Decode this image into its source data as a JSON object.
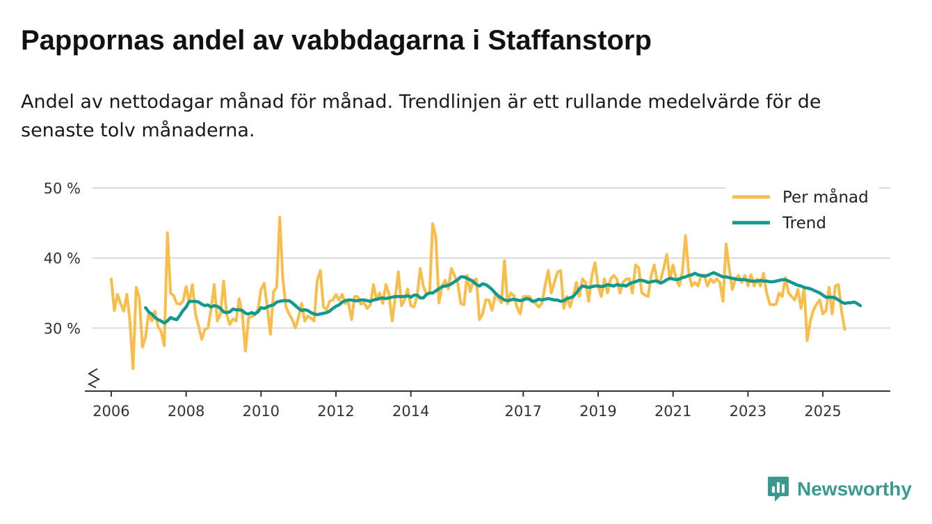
{
  "colors": {
    "monthly": "#f9bd4c",
    "trend": "#11998e",
    "grid": "#d9d9d9",
    "axis": "#333333",
    "brand": "#3a9a8e"
  },
  "chart_data": {
    "type": "line",
    "title": "Pappornas andel av vabbdagarna i Staffanstorp",
    "subtitle": "Andel av nettodagar månad för månad. Trendlinjen är ett rullande medelvärde för de senaste tolv månaderna.",
    "xlabel": "",
    "ylabel": "",
    "x_start": "2006-01",
    "xlim": [
      2005.5,
      2026.8
    ],
    "ylim": [
      21,
      50
    ],
    "y_ticks": [
      30,
      40,
      50
    ],
    "y_tick_labels": [
      "30 %",
      "40 %",
      "50 %"
    ],
    "x_ticks": [
      2006,
      2008,
      2010,
      2012,
      2014,
      2017,
      2019,
      2021,
      2023,
      2025
    ],
    "x_tick_labels": [
      "2006",
      "2008",
      "2010",
      "2012",
      "2014",
      "2017",
      "2019",
      "2021",
      "2023",
      "2025"
    ],
    "grid": true,
    "legend_position": "top-right",
    "series": [
      {
        "name": "Per månad",
        "start_index": 0,
        "values": [
          37.0,
          32.5,
          34.8,
          33.5,
          32.4,
          34.8,
          31.0,
          24.2,
          35.8,
          34.3,
          27.3,
          28.7,
          32.2,
          31.0,
          32.4,
          30.2,
          29.5,
          27.5,
          43.6,
          35.0,
          34.6,
          33.5,
          33.4,
          33.8,
          35.9,
          33.7,
          36.2,
          32.0,
          30.2,
          28.4,
          29.8,
          30.0,
          32.7,
          36.2,
          31.0,
          32.0,
          36.7,
          31.9,
          30.5,
          31.3,
          31.0,
          34.2,
          32.0,
          26.7,
          31.5,
          31.6,
          31.9,
          32.6,
          35.5,
          36.4,
          33.0,
          29.1,
          35.2,
          35.8,
          45.8,
          37.0,
          33.0,
          32.0,
          31.2,
          30.0,
          31.5,
          33.5,
          31.0,
          31.7,
          31.4,
          31.0,
          36.8,
          38.2,
          33.0,
          32.6,
          33.8,
          34.0,
          34.8,
          34.0,
          34.8,
          33.5,
          33.6,
          31.2,
          34.5,
          34.5,
          33.4,
          33.6,
          32.8,
          33.3,
          36.2,
          34.0,
          35.0,
          33.5,
          36.2,
          34.8,
          31.0,
          34.4,
          38.0,
          33.2,
          34.0,
          35.6,
          33.2,
          33.0,
          34.5,
          38.5,
          36.0,
          34.8,
          34.9,
          44.9,
          43.0,
          33.6,
          36.0,
          36.8,
          35.6,
          38.5,
          37.5,
          36.5,
          33.5,
          33.3,
          37.5,
          35.2,
          36.8,
          37.0,
          31.2,
          32.0,
          34.0,
          34.0,
          32.5,
          34.6,
          34.3,
          33.6,
          39.6,
          33.5,
          35.0,
          34.6,
          33.0,
          32.0,
          34.5,
          34.5,
          34.5,
          33.8,
          33.5,
          33.0,
          33.5,
          36.0,
          38.2,
          35.0,
          36.5,
          38.0,
          38.2,
          32.8,
          34.5,
          33.0,
          34.5,
          36.5,
          34.5,
          37.0,
          36.5,
          33.8,
          37.5,
          39.3,
          36.0,
          34.5,
          37.0,
          35.0,
          37.0,
          37.5,
          37.0,
          35.0,
          36.5,
          37.0,
          37.0,
          35.0,
          39.0,
          38.6,
          35.0,
          34.7,
          34.5,
          37.5,
          39.0,
          36.5,
          36.8,
          38.5,
          40.5,
          37.0,
          39.0,
          37.0,
          36.0,
          38.0,
          43.2,
          38.0,
          36.0,
          36.5,
          36.0,
          37.5,
          37.6,
          36.0,
          37.0,
          36.5,
          37.0,
          36.5,
          33.8,
          42.0,
          38.5,
          35.5,
          37.0,
          37.5,
          36.5,
          37.5,
          36.0,
          37.6,
          36.0,
          37.0,
          36.0,
          37.8,
          35.0,
          33.4,
          33.3,
          33.4,
          35.0,
          34.5,
          37.2,
          35.0,
          34.5,
          34.0,
          35.5,
          32.8,
          35.8,
          28.2,
          31.0,
          32.6,
          33.4,
          34.0,
          32.0,
          32.5,
          35.8,
          32.0,
          36.0,
          36.2,
          32.4,
          29.8
        ]
      },
      {
        "name": "Trend",
        "start_index": 11,
        "values": [
          32.9,
          32.3,
          32.0,
          31.5,
          31.2,
          31.0,
          30.7,
          31.0,
          31.5,
          31.3,
          31.2,
          31.8,
          32.5,
          33.0,
          33.8,
          33.8,
          33.8,
          33.7,
          33.4,
          33.2,
          33.3,
          33.0,
          33.2,
          33.1,
          32.8,
          32.3,
          32.2,
          32.3,
          32.7,
          32.6,
          32.6,
          32.5,
          32.1,
          32.0,
          32.2,
          32.0,
          32.3,
          32.9,
          32.8,
          33.0,
          33.2,
          33.3,
          33.7,
          33.8,
          33.9,
          33.9,
          33.9,
          33.6,
          33.2,
          32.8,
          32.5,
          32.6,
          32.5,
          32.2,
          32.0,
          31.9,
          32.0,
          32.1,
          32.2,
          32.4,
          32.8,
          33.1,
          33.3,
          33.7,
          33.9,
          34.0,
          34.0,
          33.9,
          33.9,
          34.0,
          34.0,
          33.9,
          33.8,
          34.0,
          34.1,
          34.2,
          34.3,
          34.2,
          34.3,
          34.4,
          34.5,
          34.5,
          34.5,
          34.5,
          34.6,
          34.4,
          34.7,
          34.7,
          34.3,
          34.3,
          34.8,
          35.0,
          35.0,
          35.3,
          35.6,
          35.9,
          36.0,
          36.1,
          36.3,
          36.6,
          36.9,
          37.3,
          37.3,
          37.1,
          36.9,
          36.6,
          36.2,
          36.0,
          36.3,
          36.2,
          35.9,
          35.5,
          35.0,
          34.6,
          34.3,
          34.0,
          33.9,
          34.0,
          34.1,
          34.0,
          33.9,
          34.0,
          34.2,
          34.1,
          33.8,
          33.9,
          34.1,
          34.0,
          34.1,
          34.2,
          34.1,
          34.0,
          34.0,
          33.8,
          33.9,
          34.2,
          34.3,
          34.5,
          35.0,
          35.6,
          36.0,
          35.9,
          35.8,
          35.9,
          36.0,
          36.0,
          35.9,
          36.0,
          36.2,
          36.1,
          36.0,
          36.2,
          36.1,
          36.1,
          36.0,
          36.3,
          36.5,
          36.6,
          36.8,
          36.8,
          36.7,
          36.5,
          36.6,
          36.7,
          36.7,
          36.4,
          36.6,
          36.9,
          37.1,
          37.0,
          36.9,
          37.0,
          37.2,
          37.3,
          37.5,
          37.6,
          37.8,
          37.6,
          37.5,
          37.4,
          37.5,
          37.7,
          37.9,
          37.7,
          37.5,
          37.3,
          37.3,
          37.2,
          37.1,
          37.0,
          36.9,
          36.9,
          36.9,
          36.8,
          36.7,
          36.7,
          36.7,
          36.8,
          36.7,
          36.7,
          36.6,
          36.6,
          36.7,
          36.8,
          36.9,
          36.9,
          36.7,
          36.5,
          36.3,
          36.1,
          36.0,
          35.8,
          35.7,
          35.6,
          35.4,
          35.2,
          35.0,
          34.7,
          34.4,
          34.4,
          34.4,
          34.3,
          34.0,
          33.7,
          33.5,
          33.6,
          33.6,
          33.7,
          33.5,
          33.2
        ]
      }
    ]
  },
  "brand": {
    "name": "Newsworthy",
    "logo_icon": "newsworthy-logo-icon"
  }
}
